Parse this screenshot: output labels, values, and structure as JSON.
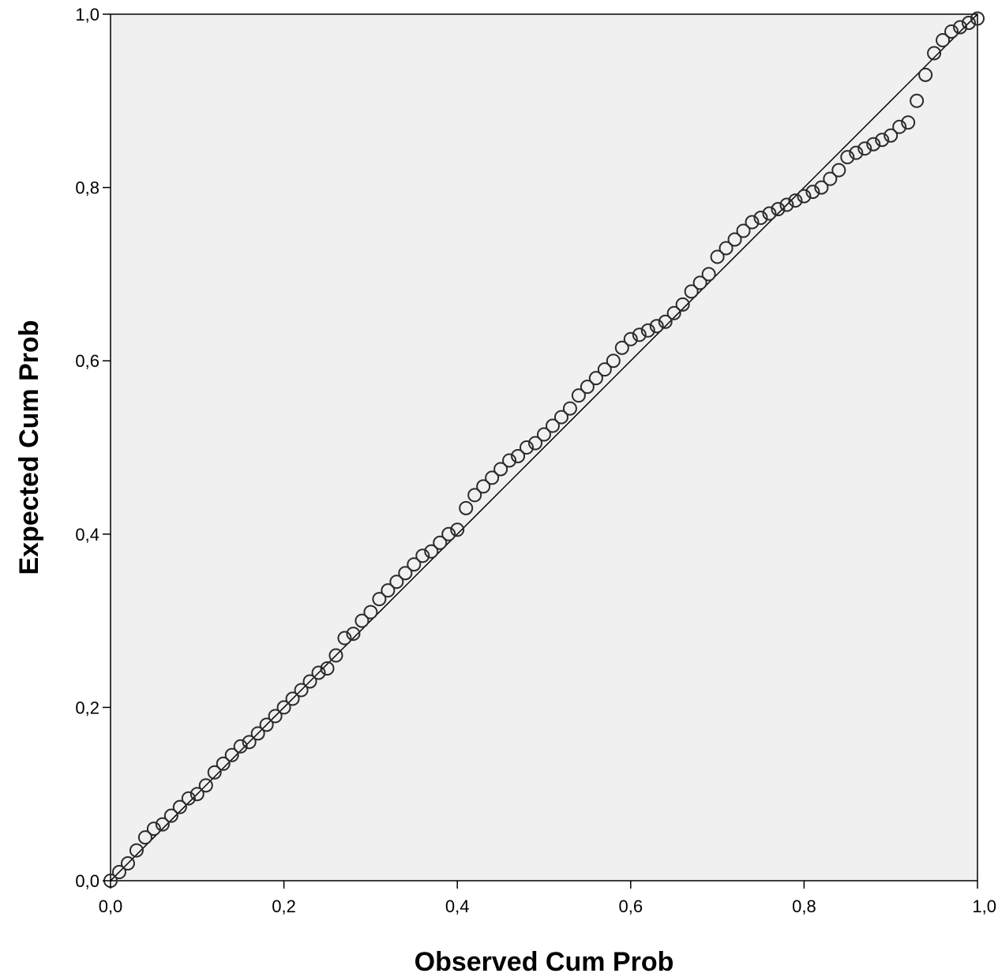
{
  "chart_data": {
    "type": "scatter",
    "title": "",
    "xlabel": "Observed Cum Prob",
    "ylabel": "Expected Cum Prob",
    "xlim": [
      0,
      1
    ],
    "ylim": [
      0,
      1
    ],
    "grid": false,
    "x_ticks": [
      "0,0",
      "0,2",
      "0,4",
      "0,6",
      "0,8",
      "1,0"
    ],
    "y_ticks": [
      "0,0",
      "0,2",
      "0,4",
      "0,6",
      "0,8",
      "1,0"
    ],
    "reference_line": {
      "from": [
        0,
        0
      ],
      "to": [
        1,
        1
      ]
    },
    "colors": {
      "plot_background": "#f0f0f0",
      "marker": "#2b2b2b",
      "line": "#000000"
    },
    "points": {
      "x": [
        0.0,
        0.01,
        0.02,
        0.03,
        0.04,
        0.05,
        0.06,
        0.07,
        0.08,
        0.09,
        0.1,
        0.11,
        0.12,
        0.13,
        0.14,
        0.15,
        0.16,
        0.17,
        0.18,
        0.19,
        0.2,
        0.21,
        0.22,
        0.23,
        0.24,
        0.25,
        0.26,
        0.27,
        0.28,
        0.29,
        0.3,
        0.31,
        0.32,
        0.33,
        0.34,
        0.35,
        0.36,
        0.37,
        0.38,
        0.39,
        0.4,
        0.41,
        0.42,
        0.43,
        0.44,
        0.45,
        0.46,
        0.47,
        0.48,
        0.49,
        0.5,
        0.51,
        0.52,
        0.53,
        0.54,
        0.55,
        0.56,
        0.57,
        0.58,
        0.59,
        0.6,
        0.61,
        0.62,
        0.63,
        0.64,
        0.65,
        0.66,
        0.67,
        0.68,
        0.69,
        0.7,
        0.71,
        0.72,
        0.73,
        0.74,
        0.75,
        0.76,
        0.77,
        0.78,
        0.79,
        0.8,
        0.81,
        0.82,
        0.83,
        0.84,
        0.85,
        0.86,
        0.87,
        0.88,
        0.89,
        0.9,
        0.91,
        0.92,
        0.93,
        0.94,
        0.95,
        0.96,
        0.97,
        0.98,
        0.99,
        1.0
      ],
      "y": [
        0.0,
        0.01,
        0.02,
        0.035,
        0.05,
        0.06,
        0.065,
        0.075,
        0.085,
        0.095,
        0.1,
        0.11,
        0.125,
        0.135,
        0.145,
        0.155,
        0.16,
        0.17,
        0.18,
        0.19,
        0.2,
        0.21,
        0.22,
        0.23,
        0.24,
        0.245,
        0.26,
        0.28,
        0.285,
        0.3,
        0.31,
        0.325,
        0.335,
        0.345,
        0.355,
        0.365,
        0.375,
        0.38,
        0.39,
        0.4,
        0.405,
        0.43,
        0.445,
        0.455,
        0.465,
        0.475,
        0.485,
        0.49,
        0.5,
        0.505,
        0.515,
        0.525,
        0.535,
        0.545,
        0.56,
        0.57,
        0.58,
        0.59,
        0.6,
        0.615,
        0.625,
        0.63,
        0.635,
        0.64,
        0.645,
        0.655,
        0.665,
        0.68,
        0.69,
        0.7,
        0.72,
        0.73,
        0.74,
        0.75,
        0.76,
        0.765,
        0.77,
        0.775,
        0.78,
        0.785,
        0.79,
        0.795,
        0.8,
        0.81,
        0.82,
        0.835,
        0.84,
        0.845,
        0.85,
        0.855,
        0.86,
        0.87,
        0.875,
        0.9,
        0.93,
        0.955,
        0.97,
        0.98,
        0.985,
        0.99,
        0.995
      ]
    }
  }
}
